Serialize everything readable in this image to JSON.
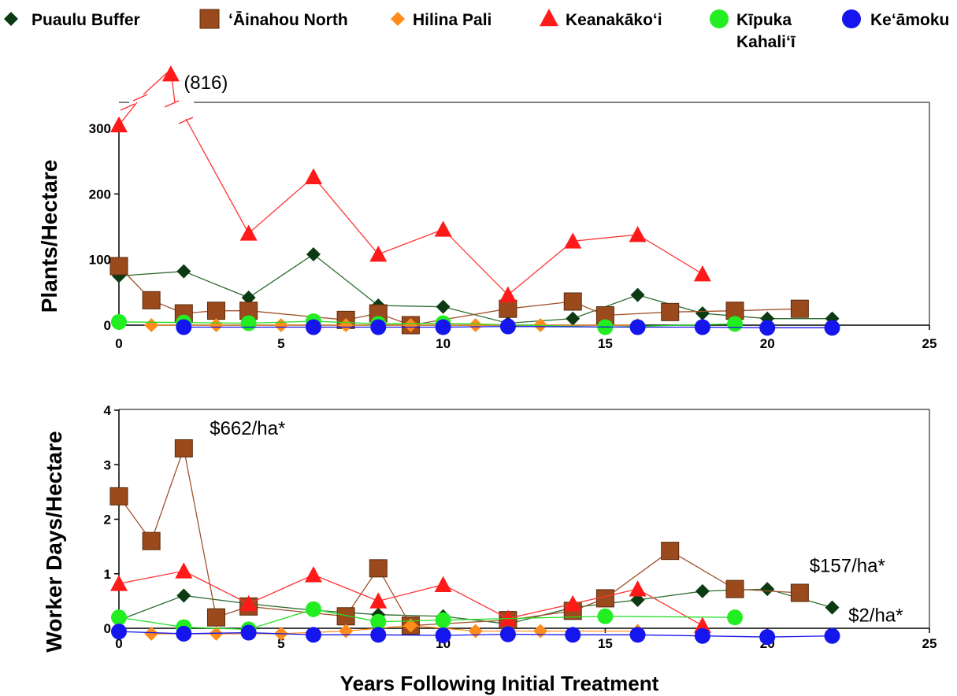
{
  "chart_data": {
    "type": "line",
    "x_axis_title": "Years Following Initial Treatment",
    "legend": {
      "placement": "top",
      "entries": [
        {
          "series": "puaulu",
          "text": "Puaulu Buffer",
          "text2": ""
        },
        {
          "series": "ainahou",
          "text": "‘Āinahou North",
          "text2": ""
        },
        {
          "series": "hilina",
          "text": "Hilina Pali",
          "text2": ""
        },
        {
          "series": "keanakakoi",
          "text": "Keanakāko‘i",
          "text2": ""
        },
        {
          "series": "kipuka",
          "text": "Kīpuka",
          "text2": "Kahali‘ī"
        },
        {
          "series": "keamoku",
          "text": "Ke‘āmoku",
          "text2": ""
        }
      ]
    },
    "styles": {
      "puaulu": {
        "marker": "diamond",
        "fill": "#0b3a13",
        "line": "#2f6b2f"
      },
      "ainahou": {
        "marker": "square",
        "fill": "#9a4a1c",
        "line": "#a0522d"
      },
      "hilina": {
        "marker": "diamond",
        "fill": "#ff8c1a",
        "line": "#ff8c1a"
      },
      "keanakakoi": {
        "marker": "triangle",
        "fill": "#ff1a1a",
        "line": "#ff3333"
      },
      "kipuka": {
        "marker": "circle",
        "fill": "#22ee22",
        "line": "#22dd22"
      },
      "keamoku": {
        "marker": "circle",
        "fill": "#1515ee",
        "line": "#1515ee"
      }
    },
    "panels": [
      {
        "id": "plants",
        "ylabel": "Plants/Hectare",
        "xlim": [
          0,
          25
        ],
        "ylim": [
          0,
          340
        ],
        "xticks": [
          0,
          5,
          10,
          15,
          20,
          25
        ],
        "yticks": [
          0,
          100,
          200,
          300
        ],
        "series": [
          {
            "key": "puaulu",
            "x": [
              0,
              2,
              4,
              6,
              8,
              10,
              12,
              14,
              16,
              18,
              20,
              22
            ],
            "y": [
              75,
              82,
              42,
              108,
              30,
              28,
              3,
              10,
              46,
              18,
              10,
              10
            ]
          },
          {
            "key": "ainahou",
            "x": [
              0,
              1,
              2,
              3,
              4,
              7,
              8,
              9,
              12,
              14,
              15,
              17,
              19,
              21
            ],
            "y": [
              90,
              38,
              18,
              22,
              22,
              8,
              18,
              0,
              25,
              36,
              15,
              20,
              22,
              25
            ]
          },
          {
            "key": "hilina",
            "x": [
              1,
              3,
              5,
              7,
              9,
              11,
              13,
              16
            ],
            "y": [
              0,
              0,
              0,
              0,
              0,
              0,
              0,
              0
            ]
          },
          {
            "key": "keanakakoi",
            "x": [
              0,
              4,
              6,
              8,
              10,
              12,
              14,
              16,
              18
            ],
            "y": [
              305,
              140,
              226,
              108,
              146,
              46,
              128,
              138,
              78
            ]
          },
          {
            "key": "kipuka",
            "x": [
              0,
              2,
              4,
              6,
              8,
              10,
              15,
              19
            ],
            "y": [
              5,
              4,
              3,
              6,
              2,
              3,
              -3,
              2
            ]
          },
          {
            "key": "keamoku",
            "x": [
              2,
              6,
              8,
              10,
              12,
              16,
              18,
              20,
              22
            ],
            "y": [
              -3,
              -3,
              -3,
              -3,
              -2,
              -3,
              -3,
              -4,
              -4
            ]
          }
        ],
        "annotations": [
          {
            "text": "(816)",
            "x": 2.0,
            "y": 360
          }
        ]
      },
      {
        "id": "worker",
        "ylabel": "Worker Days/Hectare",
        "xlim": [
          0,
          25
        ],
        "ylim": [
          0,
          4
        ],
        "xticks": [
          0,
          5,
          10,
          15,
          20,
          25
        ],
        "yticks": [
          0,
          1,
          2,
          3,
          4
        ],
        "series": [
          {
            "key": "puaulu",
            "x": [
              0,
              2,
              4,
              6,
              8,
              10,
              12,
              14,
              16,
              18,
              20,
              22
            ],
            "y": [
              0.15,
              0.6,
              0.45,
              0.33,
              0.25,
              0.22,
              0.08,
              0.38,
              0.52,
              0.68,
              0.72,
              0.38
            ]
          },
          {
            "key": "ainahou",
            "x": [
              0,
              1,
              2,
              3,
              4,
              7,
              8,
              9,
              12,
              14,
              15,
              17,
              19,
              21
            ],
            "y": [
              2.42,
              1.6,
              3.3,
              0.2,
              0.4,
              0.22,
              1.1,
              0.05,
              0.15,
              0.32,
              0.55,
              1.42,
              0.72,
              0.65
            ]
          },
          {
            "key": "hilina",
            "x": [
              1,
              3,
              5,
              7,
              9,
              11,
              13,
              16
            ],
            "y": [
              -0.1,
              -0.1,
              -0.1,
              -0.05,
              0.05,
              -0.05,
              -0.05,
              -0.05
            ]
          },
          {
            "key": "keanakakoi",
            "x": [
              0,
              2,
              4,
              6,
              8,
              10,
              12,
              14,
              16,
              18
            ],
            "y": [
              0.82,
              1.05,
              0.45,
              0.98,
              0.5,
              0.8,
              0.18,
              0.45,
              0.72,
              0.05
            ]
          },
          {
            "key": "kipuka",
            "x": [
              0,
              2,
              4,
              6,
              8,
              10,
              15,
              19
            ],
            "y": [
              0.2,
              0.02,
              -0.02,
              0.35,
              0.12,
              0.15,
              0.22,
              0.2
            ]
          },
          {
            "key": "keamoku",
            "x": [
              0,
              2,
              4,
              6,
              8,
              10,
              12,
              14,
              16,
              18,
              20,
              22
            ],
            "y": [
              -0.06,
              -0.1,
              -0.08,
              -0.12,
              -0.12,
              -0.13,
              -0.11,
              -0.12,
              -0.12,
              -0.14,
              -0.16,
              -0.14
            ]
          }
        ],
        "annotations": [
          {
            "text": "$662/ha*",
            "x": 2.8,
            "y": 3.55
          },
          {
            "text": "$157/ha*",
            "x": 21.3,
            "y": 1.03
          },
          {
            "text": "$2/ha*",
            "x": 22.5,
            "y": 0.12
          }
        ]
      }
    ]
  }
}
